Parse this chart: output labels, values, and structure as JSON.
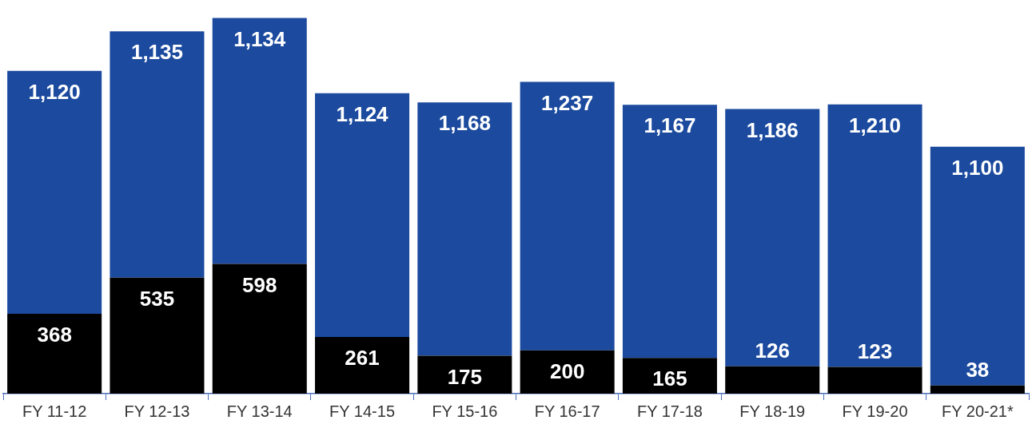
{
  "chart_data": {
    "type": "bar",
    "stacked": true,
    "tick_labels": "x",
    "categories": [
      "FY 11-12",
      "FY 12-13",
      "FY 13-14",
      "FY 14-15",
      "FY 15-16",
      "FY 16-17",
      "FY 17-18",
      "FY 18-19",
      "FY 19-20",
      "FY 20-21*"
    ],
    "series": [
      {
        "color": "#000000",
        "values": [
          368,
          535,
          598,
          261,
          175,
          200,
          165,
          126,
          123,
          38
        ],
        "value_labels": [
          "368",
          "535",
          "598",
          "261",
          "175",
          "200",
          "165",
          "126",
          "123",
          "38"
        ]
      },
      {
        "color": "#1b4a9e",
        "values": [
          1120,
          1135,
          1134,
          1124,
          1168,
          1237,
          1167,
          1186,
          1210,
          1100
        ],
        "value_labels": [
          "1,120",
          "1,135",
          "1,134",
          "1,124",
          "1,168",
          "1,237",
          "1,167",
          "1,186",
          "1,210",
          "1,100"
        ]
      }
    ]
  }
}
